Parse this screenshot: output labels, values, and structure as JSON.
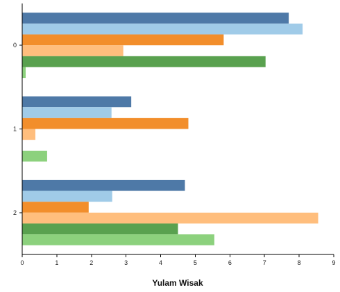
{
  "chart_data": {
    "type": "bar",
    "orientation": "horizontal",
    "categories": [
      "0",
      "1",
      "2"
    ],
    "series": [
      {
        "color": "#4e79a7",
        "values": [
          7.7,
          3.15,
          4.7
        ]
      },
      {
        "color": "#a0cbe8",
        "values": [
          8.1,
          2.58,
          2.6
        ]
      },
      {
        "color": "#f28e2b",
        "values": [
          5.82,
          4.8,
          1.92
        ]
      },
      {
        "color": "#ffbe7d",
        "values": [
          2.92,
          0.38,
          8.55
        ]
      },
      {
        "color": "#59a14f",
        "values": [
          7.03,
          0,
          4.5
        ]
      },
      {
        "color": "#8cd17d",
        "values": [
          0.1,
          0.72,
          5.55
        ]
      }
    ],
    "xlabel": "Yulam Wisak",
    "ylabel": "",
    "xlim": [
      0,
      9
    ],
    "xticks": [
      "0",
      "1",
      "2",
      "3",
      "4",
      "5",
      "6",
      "7",
      "8",
      "9"
    ],
    "grid": false,
    "legend": "none"
  }
}
